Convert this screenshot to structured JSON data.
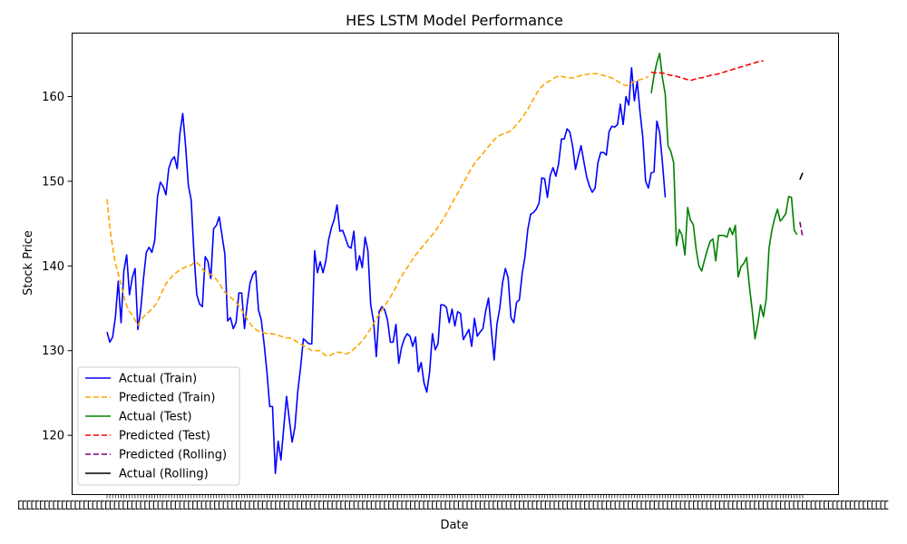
{
  "chart_data": {
    "type": "line",
    "title": "HES LSTM Model Performance",
    "xlabel": "Date",
    "ylabel": "Stock Price",
    "ylim": [
      113,
      167.5
    ],
    "yticks": [
      120,
      130,
      140,
      150,
      160
    ],
    "x_tick_labels_overlapping": true,
    "grid": false,
    "legend_position": "lower-left",
    "series": [
      {
        "name": "Actual (Train)",
        "color": "#0000ff",
        "dash": "solid",
        "start_index": 0,
        "values": [
          132.2,
          131.0,
          131.6,
          134.0,
          138.2,
          133.3,
          139.4,
          141.3,
          136.6,
          138.6,
          139.7,
          132.5,
          134.8,
          138.5,
          141.6,
          142.2,
          141.6,
          143.0,
          148.2,
          149.9,
          149.4,
          148.4,
          151.5,
          152.5,
          152.9,
          151.5,
          155.7,
          158.0,
          154.2,
          149.5,
          147.8,
          141.4,
          136.6,
          135.5,
          135.2,
          141.1,
          140.5,
          138.5,
          144.4,
          144.8,
          145.8,
          143.6,
          141.4,
          133.5,
          133.9,
          132.6,
          133.3,
          136.8,
          136.8,
          132.6,
          135.6,
          138.0,
          139.0,
          139.4,
          134.8,
          133.6,
          130.8,
          127.5,
          123.4,
          123.4,
          115.5,
          119.3,
          117.1,
          120.9,
          124.6,
          121.8,
          119.2,
          121.0,
          125.2,
          128.0,
          131.4,
          131.1,
          130.8,
          130.8,
          141.8,
          139.2,
          140.5,
          139.2,
          140.6,
          143.1,
          144.5,
          145.5,
          147.2,
          144.1,
          144.2,
          143.3,
          142.3,
          142.1,
          144.1,
          139.5,
          141.2,
          139.8,
          143.4,
          141.8,
          135.4,
          133.5,
          129.3,
          134.6,
          135.2,
          134.8,
          133.6,
          131.0,
          131.0,
          133.1,
          128.5,
          130.4,
          131.4,
          132.0,
          131.7,
          130.5,
          131.6,
          127.5,
          128.6,
          126.2,
          125.1,
          127.5,
          132.0,
          130.1,
          130.8,
          135.4,
          135.4,
          135.1,
          133.3,
          134.9,
          132.9,
          134.6,
          134.4,
          131.3,
          131.9,
          132.5,
          130.5,
          133.8,
          131.7,
          132.2,
          132.6,
          134.7,
          136.2,
          132.5,
          128.9,
          133.1,
          135.0,
          138.0,
          139.7,
          138.6,
          133.9,
          133.3,
          135.7,
          136.0,
          139.1,
          141.1,
          144.3,
          146.1,
          146.3,
          146.7,
          147.4,
          150.4,
          150.3,
          148.1,
          150.7,
          151.6,
          150.6,
          152.1,
          155.0,
          155.0,
          156.2,
          155.8,
          154.1,
          151.4,
          152.9,
          154.2,
          152.3,
          150.5,
          149.4,
          148.7,
          149.2,
          152.2,
          153.4,
          153.4,
          153.1,
          155.9,
          156.5,
          156.4,
          156.7,
          159.1,
          156.7,
          160.0,
          159.0,
          163.4,
          159.5,
          161.8,
          158.2,
          155.2,
          150.0,
          149.2,
          151.0,
          151.1,
          157.1,
          155.8,
          152.2,
          148.1
        ]
      },
      {
        "name": "Predicted (Train)",
        "color": "#ffa500",
        "dash": "dashed",
        "start_index": 0,
        "values": [
          147.9,
          144.5,
          142.2,
          140.3,
          139.1,
          137.8,
          136.4,
          135.3,
          134.6,
          134.2,
          133.6,
          133.0,
          133.6,
          134.0,
          134.3,
          134.6,
          134.9,
          135.3,
          135.8,
          136.5,
          137.2,
          137.9,
          138.3,
          138.7,
          139.0,
          139.3,
          139.5,
          139.7,
          139.9,
          140.0,
          140.1,
          140.4,
          140.4,
          140.1,
          139.6,
          139.3,
          139.1,
          139.0,
          138.8,
          138.4,
          138.0,
          137.4,
          136.9,
          136.6,
          136.3,
          136.0,
          135.7,
          135.3,
          134.8,
          134.3,
          133.7,
          133.2,
          132.8,
          132.5,
          132.3,
          132.2,
          132.1,
          132.0,
          132.0,
          132.0,
          131.9,
          131.8,
          131.7,
          131.6,
          131.5,
          131.5,
          131.4,
          131.2,
          131.0,
          130.8,
          130.6,
          130.4,
          130.2,
          130.0,
          130.0,
          130.0,
          130.0,
          129.7,
          129.4,
          129.4,
          129.5,
          129.7,
          129.8,
          129.8,
          129.7,
          129.6,
          129.7,
          129.9,
          130.2,
          130.5,
          130.8,
          131.2,
          131.6,
          132.1,
          132.6,
          133.2,
          133.8,
          134.3,
          134.8,
          135.3,
          135.8,
          136.3,
          136.9,
          137.5,
          138.2,
          138.8,
          139.3,
          139.8,
          140.3,
          140.8,
          141.3,
          141.7,
          142.1,
          142.5,
          142.9,
          143.3,
          143.7,
          144.1,
          144.6,
          145.1,
          145.6,
          146.2,
          146.8,
          147.4,
          148.0,
          148.6,
          149.2,
          149.8,
          150.4,
          151.0,
          151.6,
          152.1,
          152.5,
          152.9,
          153.3,
          153.7,
          154.1,
          154.5,
          154.9,
          155.2,
          155.4,
          155.6,
          155.7,
          155.8,
          156.0,
          156.3,
          156.7,
          157.1,
          157.5,
          158.0,
          158.5,
          159.1,
          159.7,
          160.3,
          160.8,
          161.2,
          161.5,
          161.7,
          161.9,
          162.1,
          162.3,
          162.4,
          162.4,
          162.3,
          162.2,
          162.2,
          162.2,
          162.3,
          162.4,
          162.5,
          162.6,
          162.6,
          162.7,
          162.7,
          162.7,
          162.7,
          162.6,
          162.5,
          162.4,
          162.3,
          162.2,
          162.0,
          161.8,
          161.6,
          161.4,
          161.3,
          161.4,
          161.6,
          161.8,
          161.9,
          162.0,
          162.1,
          162.2,
          162.4
        ]
      },
      {
        "name": "Actual (Test)",
        "color": "#008000",
        "dash": "solid",
        "start_index": 194,
        "values": [
          160.4,
          162.5,
          164.0,
          165.1,
          162.2,
          160.3,
          154.2,
          153.5,
          152.2,
          142.4,
          144.3,
          143.6,
          141.3,
          146.9,
          145.4,
          144.9,
          142.0,
          140.0,
          139.4,
          140.7,
          141.9,
          142.9,
          143.2,
          140.6,
          143.6,
          143.6,
          143.6,
          143.4,
          144.5,
          143.7,
          144.8,
          138.7,
          139.9,
          140.3,
          141.0,
          137.6,
          134.8,
          131.4,
          133.2,
          135.4,
          134.0,
          136.1,
          142.1,
          144.2,
          145.6,
          146.7,
          145.3,
          145.7,
          146.2,
          148.2,
          148.1,
          144.2,
          143.7
        ]
      },
      {
        "name": "Predicted (Test)",
        "color": "#ff0000",
        "dash": "dashed",
        "start_index": 194,
        "values": [
          162.9,
          162.8,
          162.8,
          162.8,
          162.8,
          162.7,
          162.6,
          162.5,
          162.5,
          162.4,
          162.3,
          162.2,
          162.1,
          162.0,
          161.9,
          162.0,
          162.1,
          162.2,
          162.2,
          162.3,
          162.4,
          162.5,
          162.6,
          162.6,
          162.7,
          162.8,
          162.9,
          163.0,
          163.1,
          163.2,
          163.3,
          163.4,
          163.5,
          163.6,
          163.7,
          163.8,
          163.9,
          164.0,
          164.1,
          164.2,
          164.2
        ]
      },
      {
        "name": "Predicted (Rolling)",
        "color": "#800080",
        "dash": "dashed",
        "start_index": 247,
        "values": [
          145.2,
          143.4
        ]
      },
      {
        "name": "Actual (Rolling)",
        "color": "#000000",
        "dash": "solid",
        "start_index": 247,
        "values": [
          150.2,
          151.0
        ]
      }
    ]
  }
}
